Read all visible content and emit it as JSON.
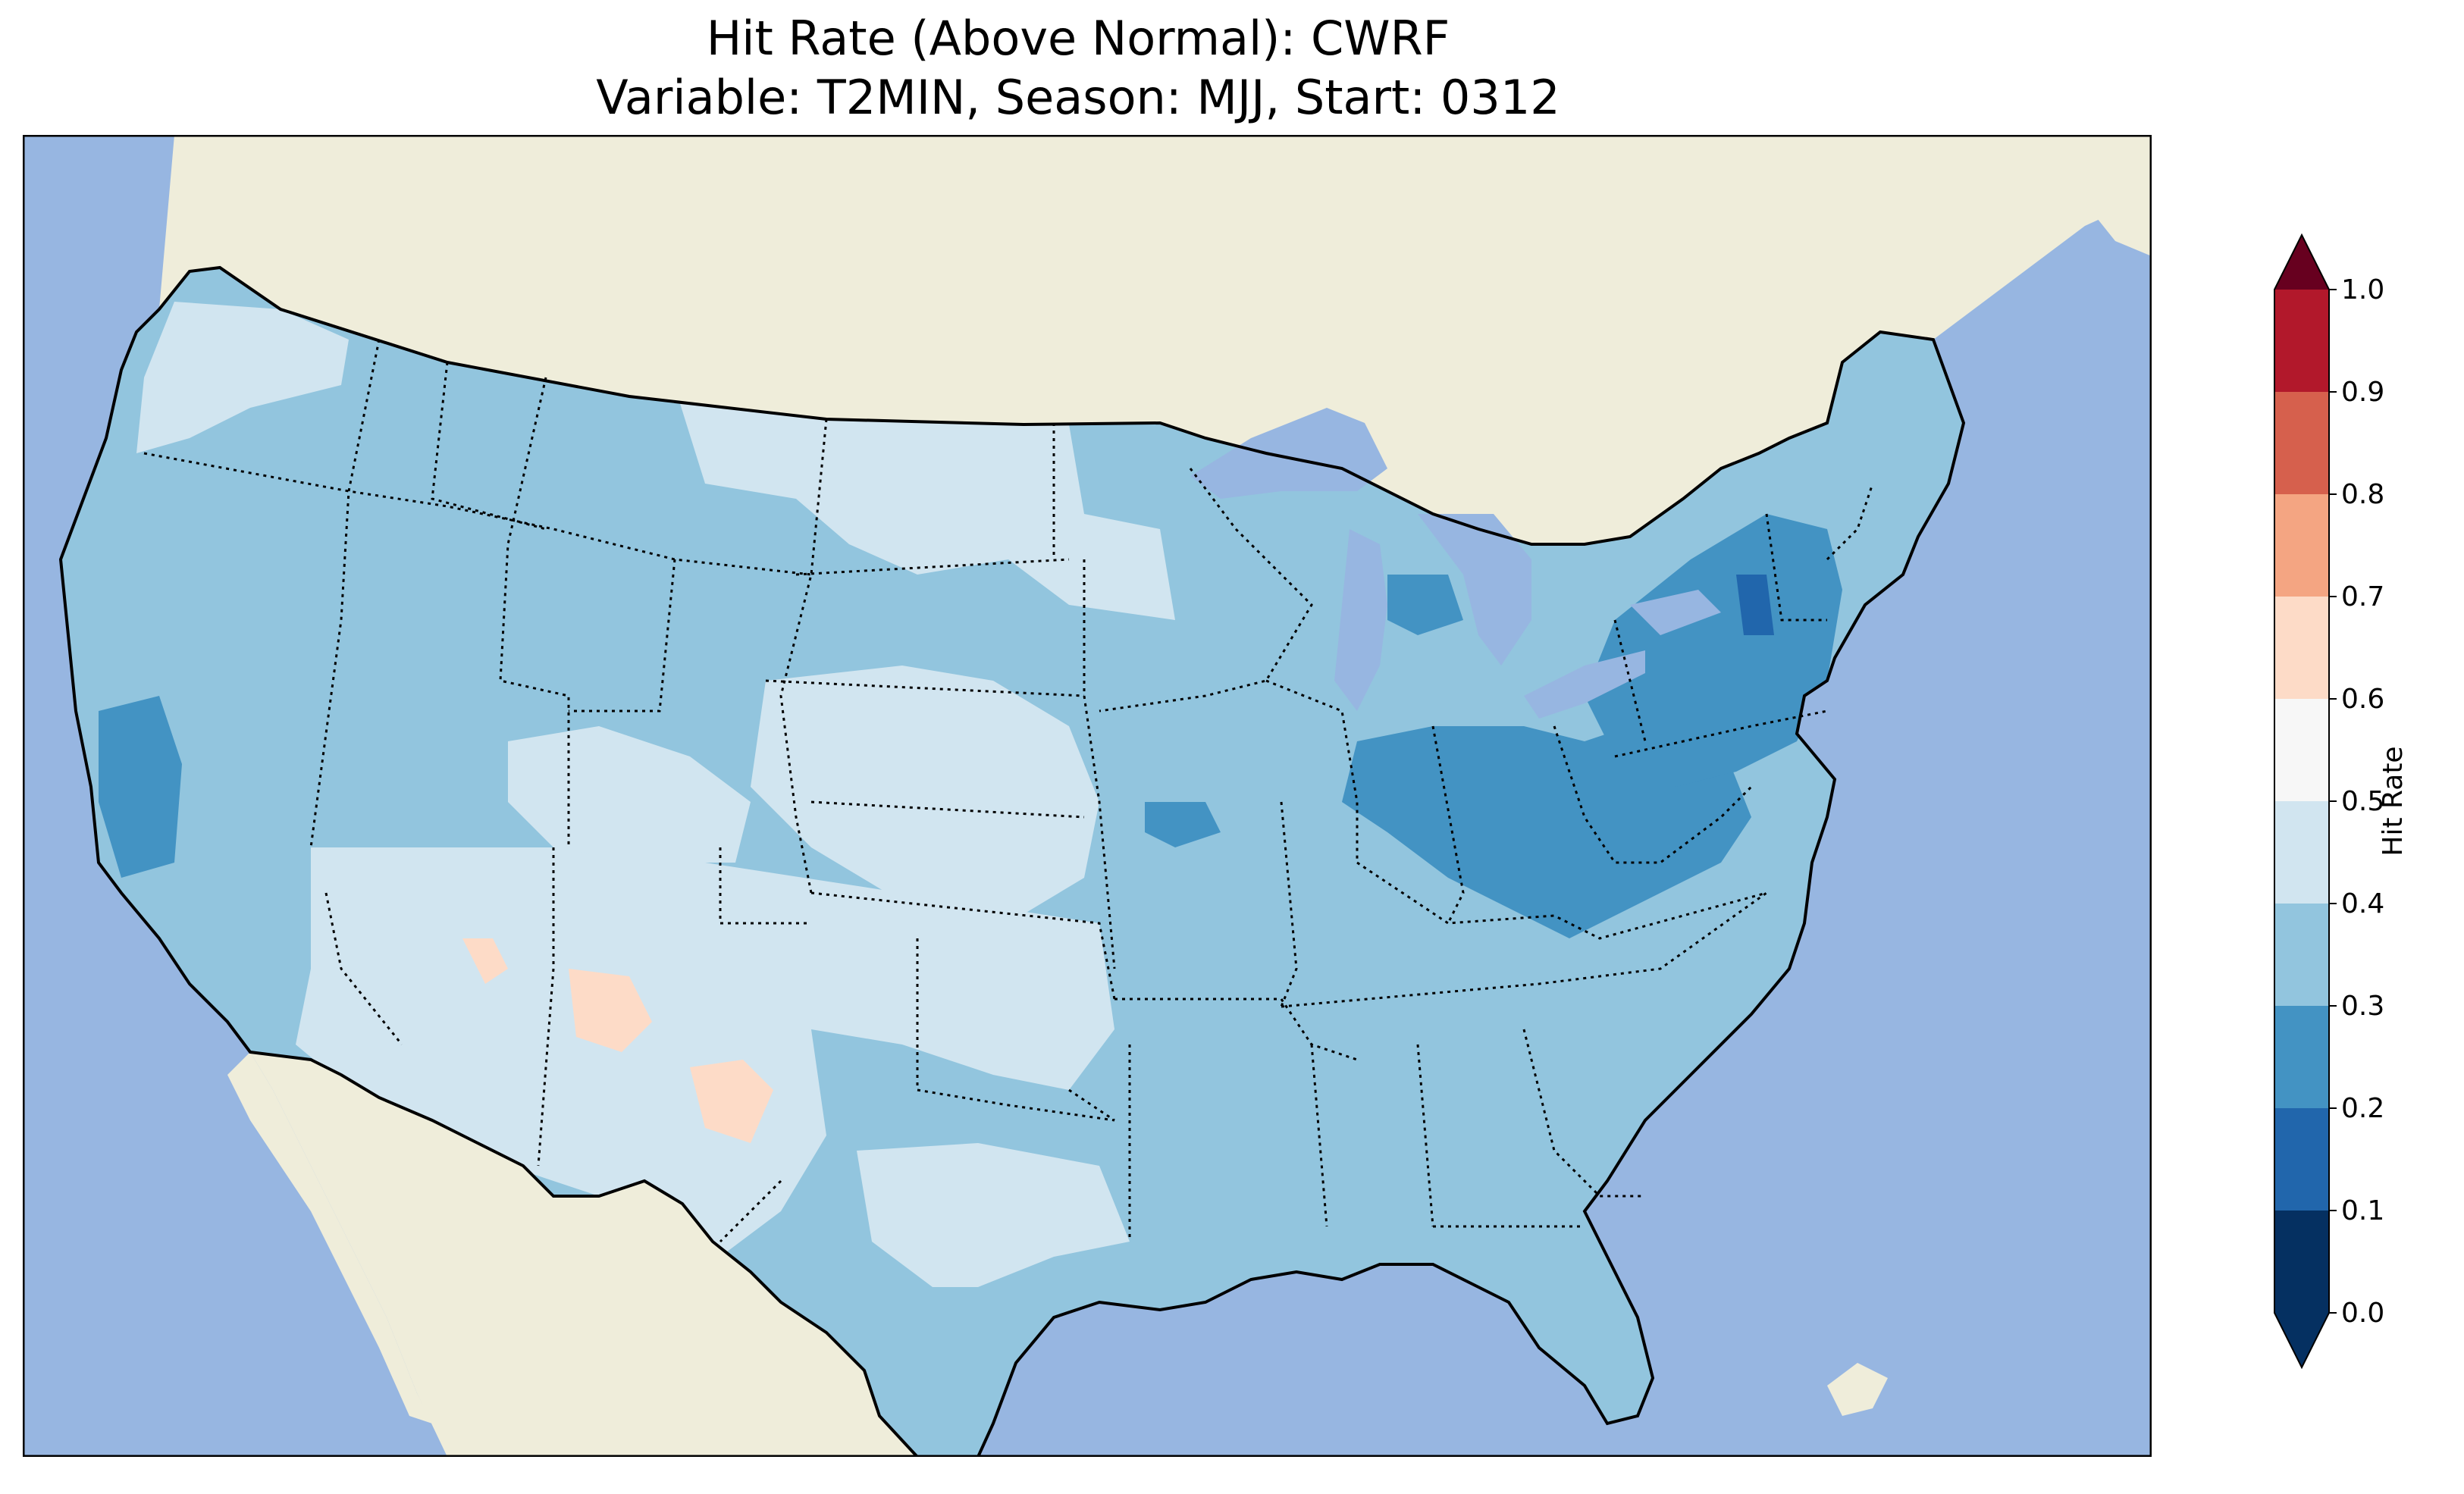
{
  "title": {
    "line1": "Hit Rate (Above Normal): CWRF",
    "line2": "Variable: T2MIN, Season: MJJ, Start: 0312"
  },
  "map": {
    "ocean_color": "#97b6e1",
    "land_color": "#efedda",
    "border_color": "#000000"
  },
  "colorbar": {
    "label": "Hit Rate",
    "ticks": [
      "0.0",
      "0.1",
      "0.2",
      "0.3",
      "0.4",
      "0.5",
      "0.6",
      "0.7",
      "0.8",
      "0.9",
      "1.0"
    ],
    "colors": [
      "#053061",
      "#2166ac",
      "#4393c3",
      "#92c5de",
      "#d1e5f0",
      "#f7f7f7",
      "#fddbc7",
      "#f4a582",
      "#d6604d",
      "#b2182b",
      "#67001f"
    ],
    "under_color": "#053061",
    "over_color": "#67001f",
    "extend": "both"
  },
  "legend_bins": [
    {
      "range": "0.0-0.1",
      "color": "#053061"
    },
    {
      "range": "0.1-0.2",
      "color": "#2166ac"
    },
    {
      "range": "0.2-0.3",
      "color": "#4393c3"
    },
    {
      "range": "0.3-0.4",
      "color": "#92c5de"
    },
    {
      "range": "0.4-0.5",
      "color": "#d1e5f0"
    },
    {
      "range": "0.5-0.6",
      "color": "#f7f7f7"
    },
    {
      "range": "0.6-0.7",
      "color": "#fddbc7"
    },
    {
      "range": "0.7-0.8",
      "color": "#f4a582"
    },
    {
      "range": "0.8-0.9",
      "color": "#d6604d"
    },
    {
      "range": "0.9-1.0",
      "color": "#b2182b"
    }
  ],
  "regions": [
    {
      "name": "West",
      "level": "0.3-0.4"
    },
    {
      "name": "Northern Plains",
      "level": "0.4-0.5"
    },
    {
      "name": "Southwest",
      "level": "0.4-0.5"
    },
    {
      "name": "Southwest patches",
      "level": "0.5-0.6"
    },
    {
      "name": "Central California",
      "level": "0.2-0.3"
    },
    {
      "name": "Ohio Valley",
      "level": "0.2-0.3"
    },
    {
      "name": "Northeast",
      "level": "0.2-0.3"
    },
    {
      "name": "Western New York",
      "level": "0.1-0.2"
    },
    {
      "name": "Southeast",
      "level": "0.3-0.4"
    },
    {
      "name": "Texas",
      "level": "0.4-0.5"
    }
  ]
}
